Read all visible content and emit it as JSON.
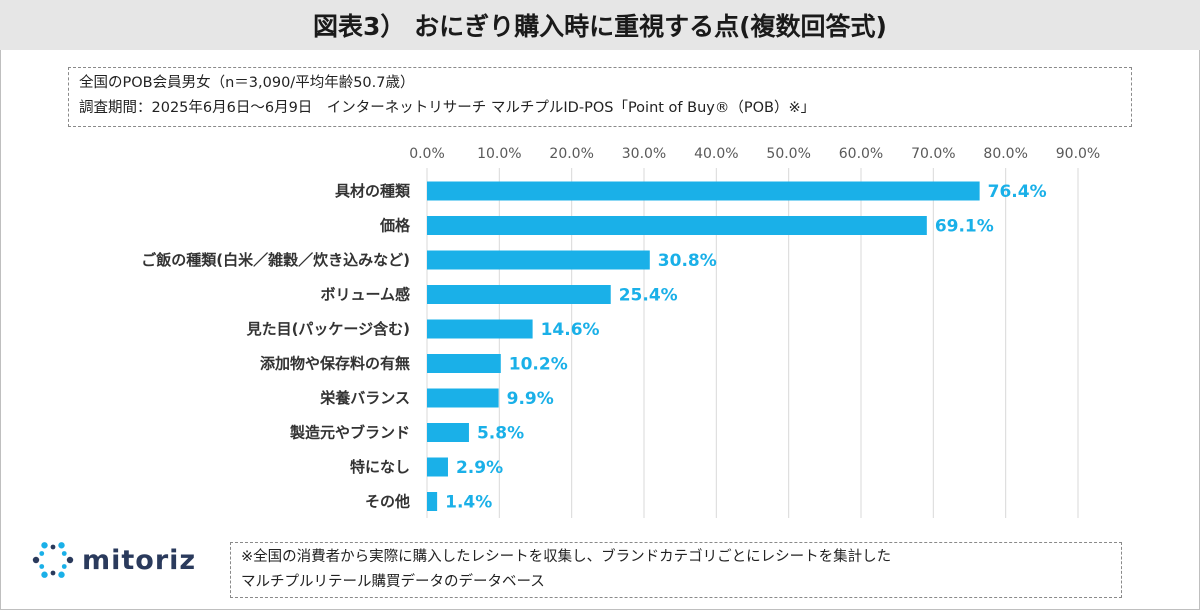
{
  "title": "図表3） おにぎり購入時に重視する点(複数回答式)",
  "meta": {
    "line1": "全国のPOB会員男女（n＝3,090/平均年齢50.7歳）",
    "line2": "調査期間：2025年6月6日～6月9日　インターネットリサーチ マルチプルID-POS「Point of Buy®（POB）※」"
  },
  "footnote": {
    "line1": "※全国の消費者から実際に購入したレシートを収集し、ブランドカテゴリごとにレシートを集計した",
    "line2": "マルチプルリテール購買データのデータベース"
  },
  "logo": {
    "text": "mitoriz",
    "icon": "mitoriz-logo-icon"
  },
  "colors": {
    "bar": "#1ab0e8",
    "value_label": "#1ab0e8",
    "grid": "#d9d9d9",
    "title_bg": "#e6e6e6",
    "logo_dark": "#2a3a5c",
    "logo_accent": "#1ab0e8"
  },
  "chart_data": {
    "type": "bar",
    "orientation": "horizontal",
    "categories": [
      "具材の種類",
      "価格",
      "ご飯の種類(白米／雑穀／炊き込みなど)",
      "ボリューム感",
      "見た目(パッケージ含む)",
      "添加物や保存料の有無",
      "栄養バランス",
      "製造元やブランド",
      "特になし",
      "その他"
    ],
    "values": [
      76.4,
      69.1,
      30.8,
      25.4,
      14.6,
      10.2,
      9.9,
      5.8,
      2.9,
      1.4
    ],
    "value_labels": [
      "76.4%",
      "69.1%",
      "30.8%",
      "25.4%",
      "14.6%",
      "10.2%",
      "9.9%",
      "5.8%",
      "2.9%",
      "1.4%"
    ],
    "xlim": [
      0,
      90
    ],
    "xticks": [
      0,
      10,
      20,
      30,
      40,
      50,
      60,
      70,
      80,
      90
    ],
    "xtick_labels": [
      "0.0%",
      "10.0%",
      "20.0%",
      "30.0%",
      "40.0%",
      "50.0%",
      "60.0%",
      "70.0%",
      "80.0%",
      "90.0%"
    ],
    "xaxis_position": "top",
    "grid": true,
    "legend": "none"
  }
}
